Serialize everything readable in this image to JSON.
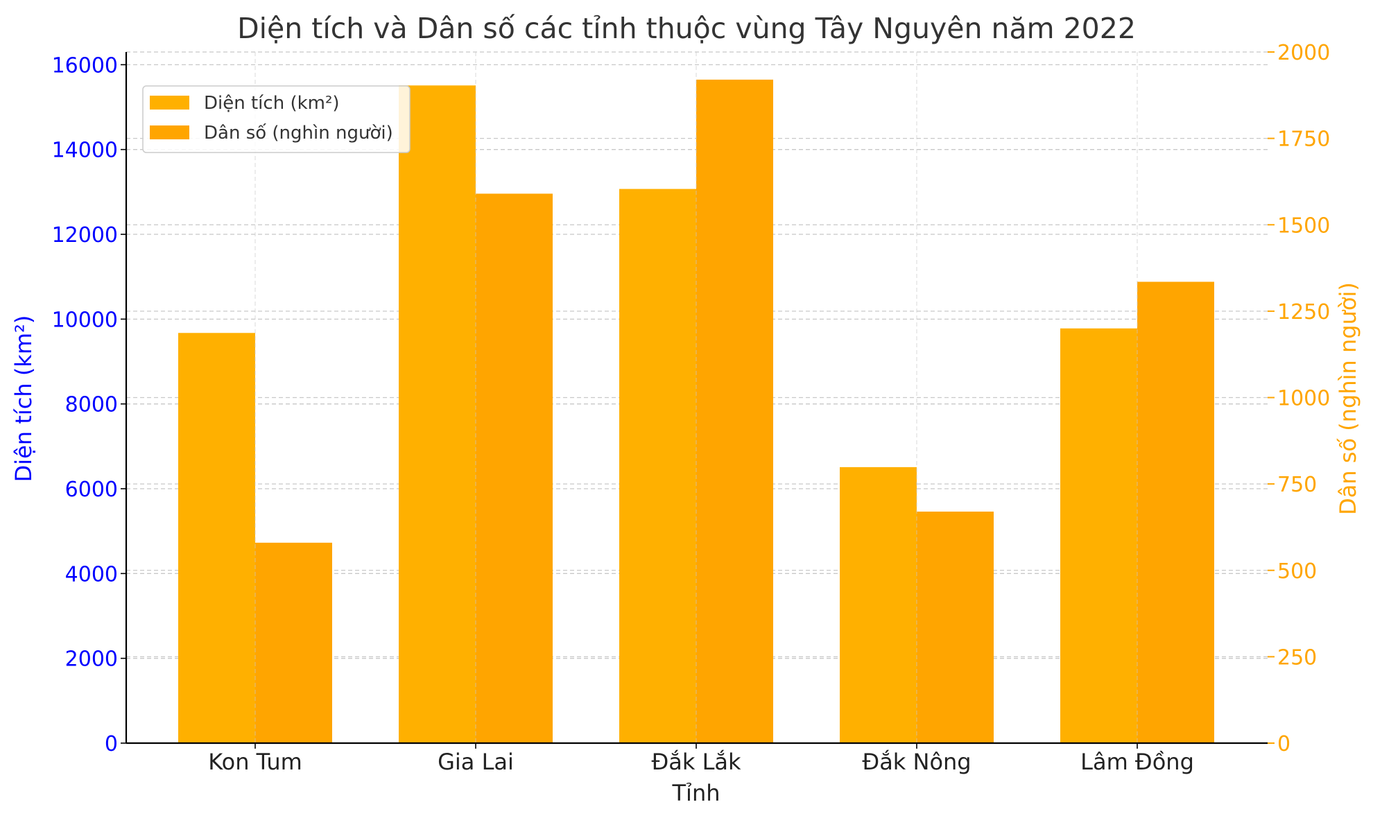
{
  "chart_data": {
    "type": "bar",
    "title": "Diện tích và Dân số các tỉnh thuộc vùng Tây Nguyên năm 2022",
    "xlabel": "Tỉnh",
    "categories": [
      "Kon Tum",
      "Gia Lai",
      "Đắk Lắk",
      "Đắk Nông",
      "Lâm Đồng"
    ],
    "y_left": {
      "label": "Diện tích (km²)",
      "color": "#0000ff",
      "ylim": [
        0,
        16300
      ],
      "ticks": [
        0,
        2000,
        4000,
        6000,
        8000,
        10000,
        12000,
        14000,
        16000
      ],
      "tick_labels": [
        "0",
        "2000",
        "4000",
        "6000",
        "8000",
        "10000",
        "12000",
        "14000",
        "16000"
      ]
    },
    "y_right": {
      "label": "Dân số (nghìn người)",
      "color": "#ffa500",
      "ylim": [
        0,
        2000
      ],
      "ticks": [
        0,
        250,
        500,
        750,
        1000,
        1250,
        1500,
        1750,
        2000
      ],
      "tick_labels": [
        "0",
        "250",
        "500",
        "750",
        "1000",
        "1250",
        "1500",
        "1750",
        "2000"
      ]
    },
    "series": [
      {
        "name": "Diện tích (km²)",
        "axis": "left",
        "color": "#ffb000",
        "values": [
          9674,
          15511,
          13070,
          6509,
          9781
        ]
      },
      {
        "name": "Dân số (nghìn người)",
        "axis": "right",
        "color": "#ffa500",
        "values": [
          580,
          1590,
          1920,
          670,
          1335
        ]
      }
    ],
    "grid": true,
    "legend_position": "top-left"
  }
}
